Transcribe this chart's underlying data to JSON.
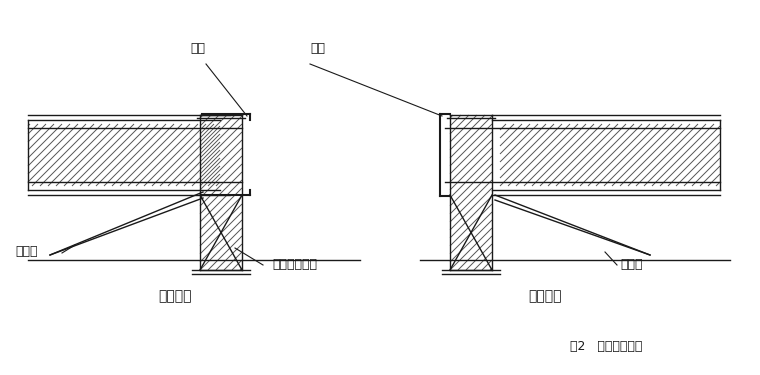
{
  "bg_color": "#ffffff",
  "line_color": "#1a1a1a",
  "figsize": [
    7.6,
    3.75
  ],
  "dpi": 100,
  "title": "图2   外墙转角加固",
  "label_single": "单面拉结",
  "label_double": "双面拉结",
  "label_ganglagan": "镰拉杆",
  "label_shuini": "水泥砂浆灘实",
  "label_jiaogan1": "角鑰",
  "label_jiaogan2": "角鑰"
}
